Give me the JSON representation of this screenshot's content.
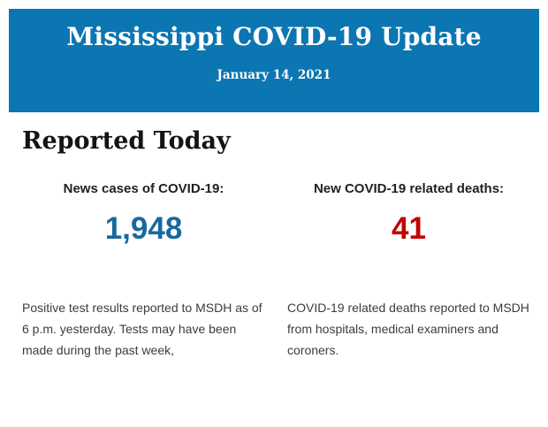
{
  "header": {
    "title": "Mississippi COVID-19 Update",
    "date": "January 14, 2021",
    "background_color": "#0b76b2",
    "text_color": "#ffffff"
  },
  "main": {
    "section_title": "Reported Today",
    "stats": [
      {
        "label": "News cases of COVID-19:",
        "value": "1,948",
        "value_color": "#17699e",
        "description": "Positive test results reported to MSDH as of 6 p.m. yesterday. Tests may have been made during the past week,"
      },
      {
        "label": "New COVID-19 related deaths:",
        "value": "41",
        "value_color": "#c40000",
        "description": "COVID-19 related deaths reported to MSDH from hospitals, medical examiners and coroners."
      }
    ]
  }
}
